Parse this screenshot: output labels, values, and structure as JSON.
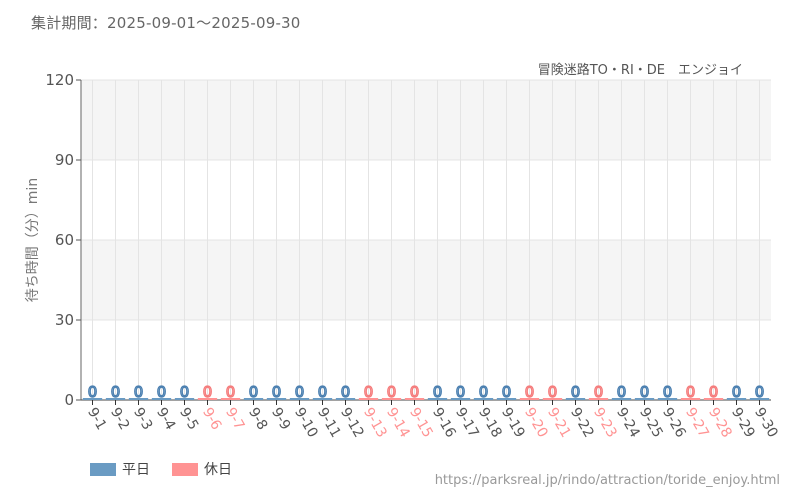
{
  "header": {
    "period": "集計期間：2025-09-01～2025-09-30",
    "subtitle": "冒険迷路TO・RI・DE　エンジョイ"
  },
  "legend": {
    "items": [
      {
        "label": "平日",
        "color": "#6a9bc3"
      },
      {
        "label": "休日",
        "color": "#ff9393"
      }
    ]
  },
  "footer": {
    "source_url": "https://parksreal.jp/rindo/attraction/toride_enjoy.html"
  },
  "colors": {
    "weekday": "#6a9bc3",
    "weekday_text": "#4a7fb0",
    "holiday": "#ff9393",
    "holiday_text": "#f57c7c",
    "axis_label": "#555555",
    "band": "#f5f5f5",
    "grid": "#e4e4e4"
  },
  "chart_data": {
    "type": "bar",
    "title": "冒険迷路TO・RI・DE　エンジョイ",
    "subtitle": "集計期間：2025-09-01～2025-09-30",
    "xlabel": "",
    "ylabel": "待ち時間（分）min",
    "ylim": [
      0,
      120
    ],
    "yticks": [
      0,
      30,
      60,
      90,
      120
    ],
    "grid": true,
    "legend_position": "bottom-left",
    "categories": [
      "9-1",
      "9-2",
      "9-3",
      "9-4",
      "9-5",
      "9-6",
      "9-7",
      "9-8",
      "9-9",
      "9-10",
      "9-11",
      "9-12",
      "9-13",
      "9-14",
      "9-15",
      "9-16",
      "9-17",
      "9-18",
      "9-19",
      "9-20",
      "9-21",
      "9-22",
      "9-23",
      "9-24",
      "9-25",
      "9-26",
      "9-27",
      "9-28",
      "9-29",
      "9-30"
    ],
    "day_type": [
      "平日",
      "平日",
      "平日",
      "平日",
      "平日",
      "休日",
      "休日",
      "平日",
      "平日",
      "平日",
      "平日",
      "平日",
      "休日",
      "休日",
      "休日",
      "平日",
      "平日",
      "平日",
      "平日",
      "休日",
      "休日",
      "平日",
      "休日",
      "平日",
      "平日",
      "平日",
      "休日",
      "休日",
      "平日",
      "平日"
    ],
    "values": [
      0,
      0,
      0,
      0,
      0,
      0,
      0,
      0,
      0,
      0,
      0,
      0,
      0,
      0,
      0,
      0,
      0,
      0,
      0,
      0,
      0,
      0,
      0,
      0,
      0,
      0,
      0,
      0,
      0,
      0
    ],
    "data_labels": [
      "0",
      "0",
      "0",
      "0",
      "0",
      "0",
      "0",
      "0",
      "0",
      "0",
      "0",
      "0",
      "0",
      "0",
      "0",
      "0",
      "0",
      "0",
      "0",
      "0",
      "0",
      "0",
      "0",
      "0",
      "0",
      "0",
      "0",
      "0",
      "0",
      "0"
    ],
    "series_legend": [
      "平日",
      "休日"
    ]
  }
}
